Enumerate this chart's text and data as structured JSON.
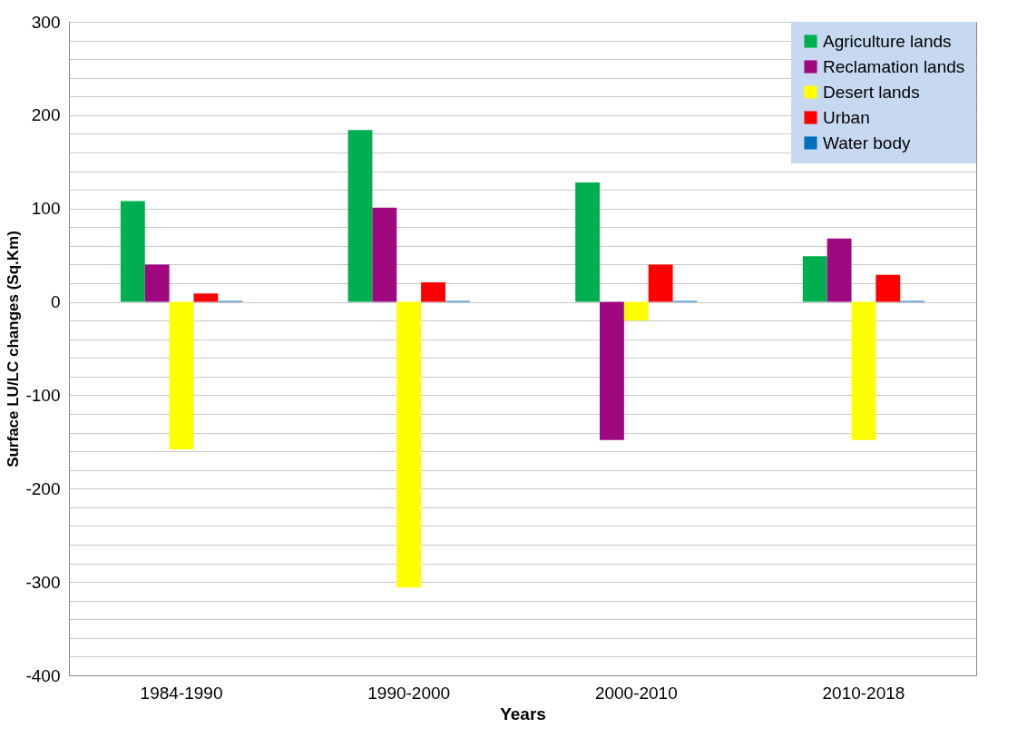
{
  "chart_data": {
    "type": "bar",
    "xlabel": "Years",
    "ylabel": "Surface LU/LC changes (Sq.Km)",
    "categories": [
      "1984-1990",
      "1990-2000",
      "2000-2010",
      "2010-2018"
    ],
    "series": [
      {
        "name": "Agriculture lands",
        "color": "#00b050",
        "values": [
          108,
          184,
          128,
          49
        ]
      },
      {
        "name": "Reclamation lands",
        "color": "#a0087f",
        "values": [
          40,
          101,
          -148,
          68
        ]
      },
      {
        "name": "Desert lands",
        "color": "#ffff00",
        "values": [
          -158,
          -306,
          -20,
          -148
        ]
      },
      {
        "name": "Urban",
        "color": "#ff0000",
        "values": [
          9,
          21,
          40,
          29
        ]
      },
      {
        "name": "Water body",
        "color": "#0070c0",
        "values": [
          1,
          1,
          1,
          1
        ]
      }
    ],
    "ylim": [
      -400,
      300
    ],
    "yticks": [
      -400,
      {
        "value": -380,
        "label": null
      },
      {
        "value": -360,
        "label": null
      },
      {
        "value": -340,
        "label": null
      },
      {
        "value": -320,
        "label": null
      },
      -300,
      {
        "value": -280,
        "label": null
      },
      {
        "value": -260,
        "label": null
      },
      {
        "value": -240,
        "label": null
      },
      {
        "value": -220,
        "label": null
      },
      -200,
      {
        "value": -180,
        "label": null
      },
      {
        "value": -160,
        "label": null
      },
      {
        "value": -140,
        "label": null
      },
      {
        "value": -120,
        "label": null
      },
      -100,
      {
        "value": -80,
        "label": null
      },
      {
        "value": -60,
        "label": null
      },
      {
        "value": -40,
        "label": null
      },
      {
        "value": -20,
        "label": null
      },
      0,
      {
        "value": 20,
        "label": null
      },
      {
        "value": 40,
        "label": null
      },
      {
        "value": 60,
        "label": null
      },
      {
        "value": 80,
        "label": null
      },
      100,
      {
        "value": 120,
        "label": null
      },
      {
        "value": 140,
        "label": null
      },
      {
        "value": 160,
        "label": null
      },
      {
        "value": 180,
        "label": null
      },
      200,
      {
        "value": 220,
        "label": null
      },
      {
        "value": 240,
        "label": null
      },
      {
        "value": 260,
        "label": null
      },
      {
        "value": 280,
        "label": null
      },
      300
    ],
    "grid": "y",
    "legend": "top right"
  }
}
